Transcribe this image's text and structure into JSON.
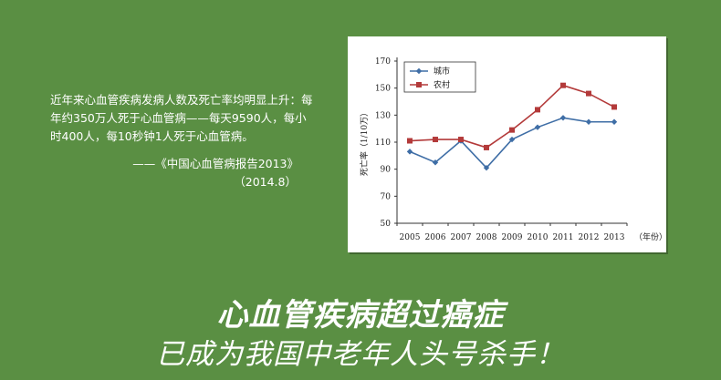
{
  "quote": {
    "text": "近年来心血管疾病发病人数及死亡率均明显上升：每年约350万人死于心血管病——每天9590人，每小时400人，每10秒钟1人死于心血管病。",
    "source": "——《中国心血管病报告2013》",
    "date": "（2014.8）"
  },
  "headline": {
    "line1": "心血管疾病超过癌症",
    "line2": "已成为我国中老年人头号杀手！"
  },
  "colors": {
    "background": "#5a8f43",
    "city": "#3f6ea6",
    "rural": "#b33a3a"
  },
  "chart_data": {
    "type": "line",
    "x": [
      "2005",
      "2006",
      "2007",
      "2008",
      "2009",
      "2010",
      "2011",
      "2012",
      "2013"
    ],
    "xlabel": "（年份）",
    "ylabel": "死亡率（1/10万）",
    "ylim": [
      50,
      170
    ],
    "yticks": [
      50,
      70,
      90,
      110,
      130,
      150,
      170
    ],
    "legend_position": "top-left",
    "series": [
      {
        "name": "城市",
        "marker": "diamond",
        "values": [
          103,
          95,
          111,
          91,
          112,
          121,
          128,
          125,
          125
        ]
      },
      {
        "name": "农村",
        "marker": "square",
        "values": [
          111,
          112,
          112,
          106,
          119,
          134,
          152,
          146,
          136
        ]
      }
    ]
  }
}
